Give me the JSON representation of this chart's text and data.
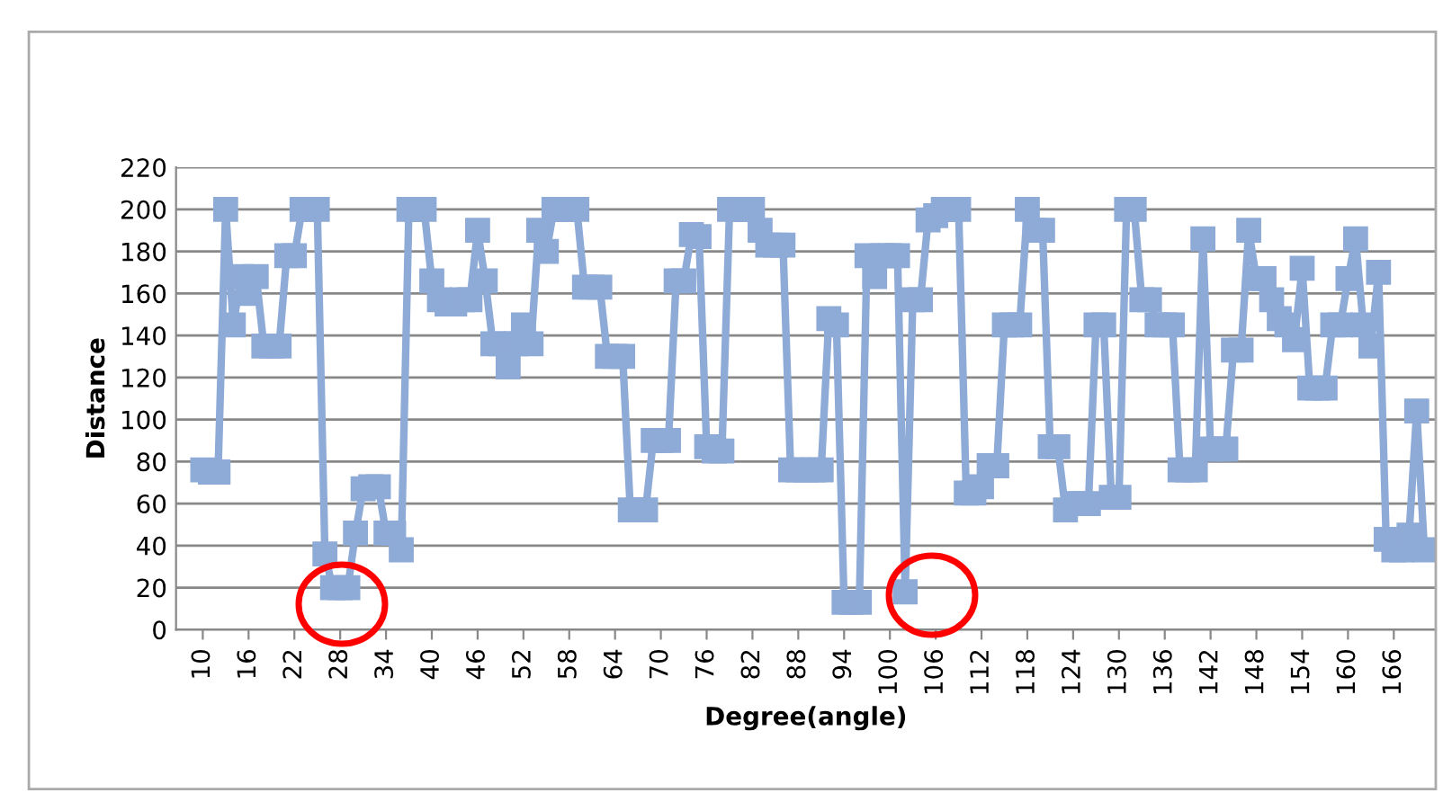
{
  "chart_data": {
    "type": "line",
    "xlabel": "Degree(angle)",
    "ylabel": "Distance",
    "x": [
      10,
      11,
      12,
      13,
      14,
      15,
      16,
      17,
      18,
      19,
      20,
      21,
      22,
      23,
      24,
      25,
      26,
      27,
      28,
      29,
      30,
      31,
      32,
      33,
      34,
      35,
      36,
      37,
      38,
      39,
      40,
      41,
      42,
      43,
      44,
      45,
      46,
      47,
      48,
      49,
      50,
      51,
      52,
      53,
      54,
      55,
      56,
      57,
      58,
      59,
      60,
      61,
      62,
      63,
      64,
      65,
      66,
      67,
      68,
      69,
      70,
      71,
      72,
      73,
      74,
      75,
      76,
      77,
      78,
      79,
      80,
      81,
      82,
      83,
      84,
      85,
      86,
      87,
      88,
      89,
      90,
      91,
      92,
      93,
      94,
      95,
      96,
      97,
      98,
      99,
      100,
      101,
      102,
      103,
      104,
      105,
      106,
      107,
      108,
      109,
      110,
      111,
      112,
      113,
      114,
      115,
      116,
      117,
      118,
      119,
      120,
      121,
      122,
      123,
      124,
      125,
      126,
      127,
      128,
      129,
      130,
      131,
      132,
      133,
      134,
      135,
      136,
      137,
      138,
      139,
      140,
      141,
      142,
      143,
      144,
      145,
      146,
      147,
      148,
      149,
      150,
      151,
      152,
      153,
      154,
      155,
      156,
      157,
      158,
      159,
      160,
      161,
      162,
      163,
      164,
      165,
      166,
      167,
      168,
      169,
      170
    ],
    "series": [
      {
        "color": "#8eaad6",
        "values": [
          76,
          75,
          75,
          200,
          145,
          168,
          160,
          168,
          135,
          135,
          135,
          178,
          178,
          200,
          200,
          200,
          36,
          20,
          20,
          20,
          46,
          67,
          68,
          68,
          46,
          46,
          38,
          200,
          200,
          200,
          166,
          157,
          155,
          155,
          157,
          157,
          190,
          166,
          136,
          136,
          125,
          136,
          145,
          136,
          190,
          180,
          200,
          200,
          200,
          200,
          163,
          163,
          163,
          130,
          130,
          130,
          57,
          57,
          57,
          90,
          90,
          90,
          166,
          166,
          188,
          187,
          87,
          85,
          85,
          200,
          200,
          200,
          200,
          190,
          183,
          183,
          183,
          76,
          76,
          76,
          76,
          76,
          148,
          145,
          13,
          13,
          13,
          178,
          168,
          178,
          178,
          178,
          18,
          157,
          157,
          195,
          197,
          200,
          200,
          200,
          65,
          65,
          68,
          78,
          78,
          145,
          145,
          145,
          200,
          190,
          190,
          87,
          87,
          57,
          60,
          60,
          60,
          145,
          145,
          63,
          63,
          200,
          200,
          157,
          157,
          145,
          145,
          145,
          76,
          76,
          76,
          186,
          86,
          86,
          86,
          133,
          133,
          190,
          167,
          167,
          157,
          148,
          145,
          138,
          172,
          115,
          115,
          115,
          145,
          145,
          167,
          186,
          145,
          135,
          170,
          43,
          38,
          38,
          45,
          104,
          38
        ]
      }
    ],
    "xlim": [
      6.5,
      171.5
    ],
    "xticks": [
      10,
      16,
      22,
      28,
      34,
      40,
      46,
      52,
      58,
      64,
      70,
      76,
      82,
      88,
      94,
      100,
      106,
      112,
      118,
      124,
      130,
      136,
      142,
      148,
      154,
      160,
      166
    ],
    "ylim": [
      0,
      220
    ],
    "yticks": [
      0,
      20,
      40,
      60,
      80,
      100,
      120,
      140,
      160,
      180,
      200,
      220
    ],
    "grid": "y",
    "marker": "square",
    "line_style": "solid",
    "legend": false
  }
}
